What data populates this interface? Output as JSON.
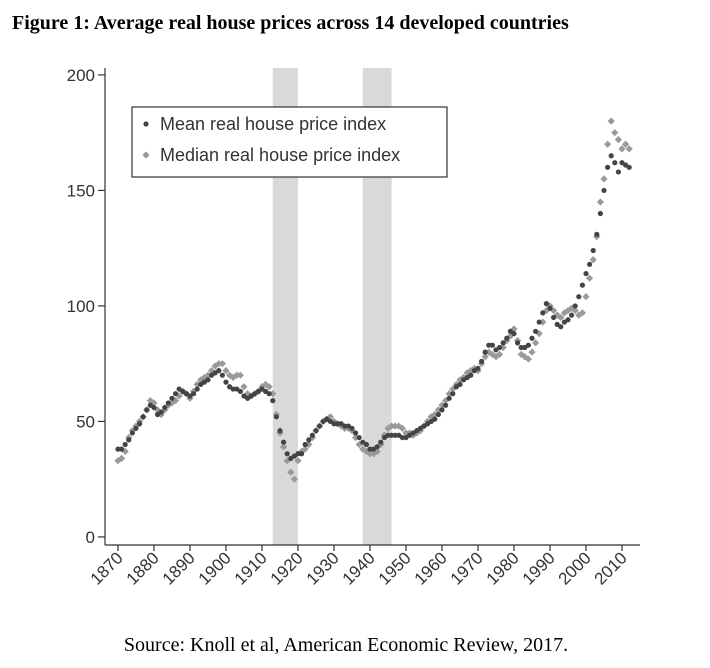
{
  "chart_data": {
    "type": "scatter",
    "title": "Figure 1: Average real house prices across 14 developed countries",
    "source": "Source: Knoll et al, American Economic Review, 2017.",
    "x": [
      1870,
      1871,
      1872,
      1873,
      1874,
      1875,
      1876,
      1877,
      1878,
      1879,
      1880,
      1881,
      1882,
      1883,
      1884,
      1885,
      1886,
      1887,
      1888,
      1889,
      1890,
      1891,
      1892,
      1893,
      1894,
      1895,
      1896,
      1897,
      1898,
      1899,
      1900,
      1901,
      1902,
      1903,
      1904,
      1905,
      1906,
      1907,
      1908,
      1909,
      1910,
      1911,
      1912,
      1913,
      1914,
      1915,
      1916,
      1917,
      1918,
      1919,
      1920,
      1921,
      1922,
      1923,
      1924,
      1925,
      1926,
      1927,
      1928,
      1929,
      1930,
      1931,
      1932,
      1933,
      1934,
      1935,
      1936,
      1937,
      1938,
      1939,
      1940,
      1941,
      1942,
      1943,
      1944,
      1945,
      1946,
      1947,
      1948,
      1949,
      1950,
      1951,
      1952,
      1953,
      1954,
      1955,
      1956,
      1957,
      1958,
      1959,
      1960,
      1961,
      1962,
      1963,
      1964,
      1965,
      1966,
      1967,
      1968,
      1969,
      1970,
      1971,
      1972,
      1973,
      1974,
      1975,
      1976,
      1977,
      1978,
      1979,
      1980,
      1981,
      1982,
      1983,
      1984,
      1985,
      1986,
      1987,
      1988,
      1989,
      1990,
      1991,
      1992,
      1993,
      1994,
      1995,
      1996,
      1997,
      1998,
      1999,
      2000,
      2001,
      2002,
      2003,
      2004,
      2005,
      2006,
      2007,
      2008,
      2009,
      2010,
      2011,
      2012
    ],
    "series": [
      {
        "name": "Mean real house price index",
        "color": "#444444",
        "marker": "circle",
        "values": [
          38,
          38,
          40,
          42,
          45,
          47,
          49,
          52,
          55,
          57,
          56,
          53,
          54,
          56,
          58,
          60,
          62,
          64,
          63,
          62,
          61,
          62,
          64,
          66,
          67,
          68,
          70,
          71,
          72,
          70,
          67,
          65,
          64,
          64,
          63,
          61,
          60,
          61,
          62,
          63,
          64,
          63,
          62,
          59,
          52,
          46,
          41,
          36,
          34,
          35,
          36,
          36,
          40,
          42,
          44,
          46,
          48,
          50,
          51,
          50,
          49,
          49,
          49,
          48,
          48,
          47,
          45,
          43,
          41,
          40,
          38,
          38,
          39,
          41,
          43,
          44,
          44,
          44,
          44,
          43,
          43,
          44,
          45,
          46,
          47,
          48,
          49,
          50,
          51,
          53,
          55,
          57,
          60,
          62,
          65,
          66,
          68,
          69,
          70,
          72,
          73,
          76,
          80,
          83,
          83,
          81,
          82,
          84,
          86,
          89,
          88,
          84,
          82,
          82,
          83,
          86,
          89,
          93,
          97,
          101,
          99,
          95,
          92,
          91,
          93,
          94,
          96,
          100,
          104,
          109,
          114,
          118,
          124,
          131,
          140,
          150,
          160,
          165,
          162,
          158,
          162,
          161,
          160
        ]
      },
      {
        "name": "Median real house price index",
        "color": "#9a9a9a",
        "marker": "diamond",
        "values": [
          33,
          34,
          37,
          43,
          46,
          48,
          50,
          52,
          55,
          59,
          58,
          55,
          53,
          55,
          57,
          58,
          59,
          61,
          63,
          62,
          60,
          63,
          66,
          68,
          69,
          70,
          72,
          74,
          75,
          75,
          72,
          70,
          69,
          70,
          70,
          65,
          62,
          61,
          62,
          63,
          65,
          66,
          65,
          62,
          53,
          45,
          39,
          33,
          28,
          25,
          33,
          37,
          38,
          40,
          43,
          46,
          48,
          50,
          51,
          52,
          50,
          49,
          48,
          47,
          47,
          46,
          43,
          40,
          38,
          37,
          36,
          36,
          37,
          40,
          44,
          47,
          48,
          48,
          48,
          47,
          45,
          45,
          44,
          45,
          46,
          48,
          50,
          52,
          53,
          55,
          57,
          59,
          62,
          64,
          66,
          68,
          69,
          71,
          72,
          73,
          72,
          75,
          78,
          80,
          79,
          78,
          79,
          82,
          85,
          87,
          90,
          85,
          79,
          78,
          77,
          80,
          84,
          88,
          93,
          98,
          100,
          98,
          96,
          95,
          97,
          98,
          99,
          98,
          96,
          97,
          104,
          112,
          120,
          130,
          145,
          155,
          170,
          180,
          175,
          172,
          168,
          170,
          168
        ]
      }
    ],
    "shaded_periods": [
      [
        1913,
        1920
      ],
      [
        1938,
        1946
      ]
    ],
    "xlim": [
      1866.4,
      2015
    ],
    "ylim": [
      -3.5,
      203
    ],
    "xticks": [
      1870,
      1880,
      1890,
      1900,
      1910,
      1920,
      1930,
      1940,
      1950,
      1960,
      1970,
      1980,
      1990,
      2000,
      2010
    ],
    "yticks": [
      0,
      50,
      100,
      150,
      200
    ],
    "legend": "upper left"
  }
}
